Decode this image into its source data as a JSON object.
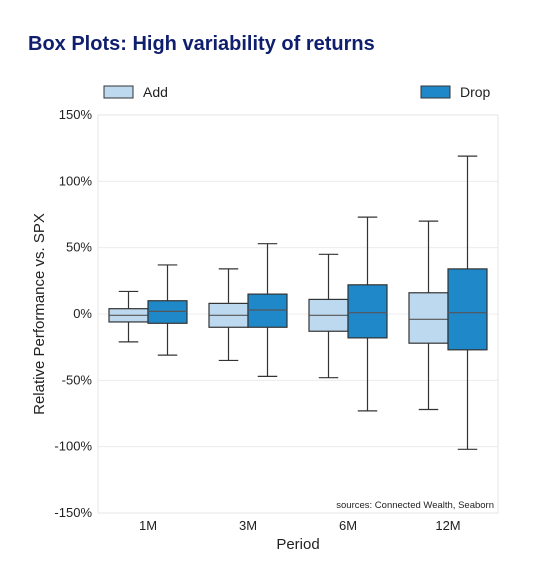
{
  "chart_data": {
    "type": "box",
    "title": "Box Plots: High variability of returns",
    "xlabel": "Period",
    "ylabel": "Relative Performance vs. SPX",
    "categories": [
      "1M",
      "3M",
      "6M",
      "12M"
    ],
    "ylim": [
      -150,
      150
    ],
    "yticks": [
      150,
      100,
      50,
      0,
      -50,
      -100,
      -150
    ],
    "ytick_labels": [
      "150%",
      "100%",
      "50%",
      "0%",
      "-50%",
      "-100%",
      "-150%"
    ],
    "grid": true,
    "legend_placement": "top",
    "source_note": "sources: Connected Wealth, Seaborn",
    "series": [
      {
        "name": "Add",
        "color": "#bcd9f0",
        "boxes": [
          {
            "whisker_low": -21,
            "q1": -6,
            "median": -1,
            "q3": 4,
            "whisker_high": 17
          },
          {
            "whisker_low": -35,
            "q1": -10,
            "median": -1,
            "q3": 8,
            "whisker_high": 34
          },
          {
            "whisker_low": -48,
            "q1": -13,
            "median": -1,
            "q3": 11,
            "whisker_high": 45
          },
          {
            "whisker_low": -72,
            "q1": -22,
            "median": -4,
            "q3": 16,
            "whisker_high": 70
          }
        ]
      },
      {
        "name": "Drop",
        "color": "#1f88c9",
        "boxes": [
          {
            "whisker_low": -31,
            "q1": -7,
            "median": 2,
            "q3": 10,
            "whisker_high": 37
          },
          {
            "whisker_low": -47,
            "q1": -10,
            "median": 3,
            "q3": 15,
            "whisker_high": 53
          },
          {
            "whisker_low": -73,
            "q1": -18,
            "median": 1,
            "q3": 22,
            "whisker_high": 73
          },
          {
            "whisker_low": -102,
            "q1": -27,
            "median": 1,
            "q3": 34,
            "whisker_high": 119
          }
        ]
      }
    ]
  }
}
